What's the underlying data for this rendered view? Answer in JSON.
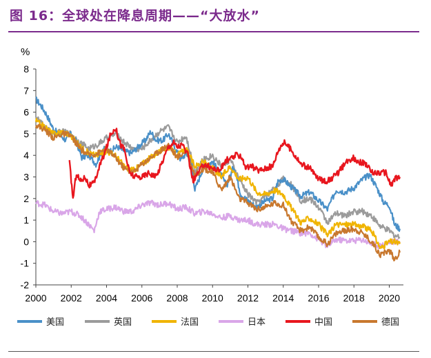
{
  "header": {
    "title": "图 16：全球处在降息周期——“大放水”"
  },
  "chart_data": {
    "type": "line",
    "title": "图 16：全球处在降息周期——“大放水”",
    "ylabel": "%",
    "xlabel": "",
    "ylim": [
      -2,
      8
    ],
    "xlim": [
      2000,
      2020.8
    ],
    "yticks": [
      -2,
      -1,
      0,
      1,
      2,
      3,
      4,
      5,
      6,
      7,
      8
    ],
    "xticks": [
      2000,
      2002,
      2004,
      2006,
      2008,
      2010,
      2012,
      2014,
      2016,
      2018,
      2020
    ],
    "grid": false,
    "legend_position": "bottom",
    "series": [
      {
        "name": "美国",
        "color": "#4a90c8",
        "x": [
          2000.0,
          2000.3,
          2000.6,
          2001.0,
          2001.3,
          2001.7,
          2002.0,
          2002.3,
          2002.6,
          2003.0,
          2003.4,
          2003.8,
          2004.2,
          2004.6,
          2005.0,
          2005.4,
          2005.8,
          2006.2,
          2006.5,
          2006.8,
          2007.2,
          2007.5,
          2007.8,
          2008.2,
          2008.5,
          2008.8,
          2009.0,
          2009.5,
          2010.0,
          2010.4,
          2010.8,
          2011.2,
          2011.6,
          2012.0,
          2012.5,
          2013.0,
          2013.4,
          2013.7,
          2014.0,
          2014.5,
          2015.0,
          2015.5,
          2016.0,
          2016.5,
          2017.0,
          2017.5,
          2018.0,
          2018.5,
          2018.9,
          2019.3,
          2019.7,
          2020.0,
          2020.3,
          2020.6
        ],
        "values": [
          6.6,
          6.3,
          5.9,
          5.2,
          5.0,
          4.7,
          5.0,
          4.6,
          3.9,
          4.0,
          3.6,
          4.3,
          4.2,
          4.4,
          4.2,
          4.1,
          4.4,
          4.7,
          5.1,
          4.7,
          4.7,
          5.0,
          4.5,
          3.8,
          4.1,
          3.7,
          2.4,
          3.5,
          3.7,
          3.2,
          2.6,
          3.5,
          2.2,
          1.9,
          1.6,
          1.9,
          2.0,
          2.8,
          2.9,
          2.5,
          2.1,
          2.3,
          1.9,
          1.5,
          2.4,
          2.3,
          2.5,
          2.9,
          3.1,
          2.5,
          1.8,
          1.7,
          0.8,
          0.6
        ]
      },
      {
        "name": "英国",
        "color": "#9b9b9b",
        "x": [
          2000.0,
          2000.5,
          2001.0,
          2001.5,
          2002.0,
          2002.5,
          2003.0,
          2003.5,
          2004.0,
          2004.5,
          2005.0,
          2005.5,
          2006.0,
          2006.5,
          2007.0,
          2007.5,
          2008.0,
          2008.5,
          2009.0,
          2009.5,
          2010.0,
          2010.5,
          2011.0,
          2011.5,
          2012.0,
          2012.5,
          2013.0,
          2013.5,
          2014.0,
          2014.5,
          2015.0,
          2015.5,
          2016.0,
          2016.5,
          2017.0,
          2017.5,
          2018.0,
          2018.5,
          2019.0,
          2019.5,
          2020.0,
          2020.3,
          2020.6
        ],
        "values": [
          5.8,
          5.3,
          5.0,
          5.1,
          5.0,
          4.6,
          4.3,
          4.5,
          4.8,
          5.0,
          4.6,
          4.3,
          4.3,
          4.7,
          5.1,
          5.3,
          4.6,
          4.9,
          3.3,
          3.8,
          4.0,
          3.5,
          3.8,
          2.9,
          2.2,
          1.8,
          2.1,
          2.5,
          2.9,
          2.6,
          1.9,
          2.0,
          1.6,
          0.9,
          1.3,
          1.2,
          1.4,
          1.4,
          1.2,
          0.7,
          0.5,
          0.3,
          0.2
        ]
      },
      {
        "name": "法国",
        "color": "#f0b400",
        "x": [
          2000.0,
          2000.5,
          2001.0,
          2001.5,
          2002.0,
          2002.5,
          2003.0,
          2003.5,
          2004.0,
          2004.5,
          2005.0,
          2005.5,
          2006.0,
          2006.5,
          2007.0,
          2007.5,
          2008.0,
          2008.5,
          2009.0,
          2009.5,
          2010.0,
          2010.5,
          2011.0,
          2011.5,
          2012.0,
          2012.5,
          2013.0,
          2013.5,
          2014.0,
          2014.5,
          2015.0,
          2015.5,
          2016.0,
          2016.5,
          2017.0,
          2017.5,
          2018.0,
          2018.5,
          2019.0,
          2019.5,
          2020.0,
          2020.3,
          2020.6
        ],
        "values": [
          5.6,
          5.3,
          5.0,
          5.1,
          4.9,
          4.4,
          4.1,
          4.0,
          4.2,
          4.0,
          3.5,
          3.3,
          3.6,
          3.9,
          4.2,
          4.4,
          4.0,
          4.3,
          3.5,
          3.7,
          3.4,
          3.0,
          3.5,
          2.9,
          3.0,
          2.3,
          2.2,
          2.4,
          2.2,
          1.5,
          0.9,
          1.1,
          0.8,
          0.3,
          0.8,
          0.8,
          0.8,
          0.7,
          0.5,
          -0.3,
          0.0,
          0.0,
          -0.1
        ]
      },
      {
        "name": "日本",
        "color": "#d9a6e8",
        "x": [
          2000.0,
          2000.5,
          2001.0,
          2001.5,
          2002.0,
          2002.5,
          2003.0,
          2003.3,
          2003.6,
          2004.0,
          2004.5,
          2005.0,
          2005.5,
          2006.0,
          2006.5,
          2007.0,
          2007.5,
          2008.0,
          2008.5,
          2009.0,
          2009.5,
          2010.0,
          2010.5,
          2011.0,
          2011.5,
          2012.0,
          2012.5,
          2013.0,
          2013.5,
          2014.0,
          2014.5,
          2015.0,
          2015.5,
          2016.0,
          2016.5,
          2017.0,
          2017.5,
          2018.0,
          2018.5,
          2019.0,
          2019.5,
          2020.0,
          2020.3,
          2020.6
        ],
        "values": [
          1.8,
          1.7,
          1.4,
          1.3,
          1.4,
          1.2,
          0.8,
          0.5,
          1.4,
          1.5,
          1.6,
          1.4,
          1.4,
          1.7,
          1.8,
          1.7,
          1.8,
          1.5,
          1.6,
          1.3,
          1.4,
          1.3,
          1.1,
          1.2,
          1.0,
          1.0,
          0.8,
          0.8,
          0.8,
          0.6,
          0.5,
          0.4,
          0.4,
          0.1,
          -0.2,
          0.1,
          0.05,
          0.05,
          0.1,
          -0.1,
          -0.2,
          0.0,
          0.0,
          0.0
        ]
      },
      {
        "name": "中国",
        "color": "#e8161e",
        "x": [
          2001.9,
          2002.1,
          2002.3,
          2002.5,
          2002.8,
          2003.0,
          2003.3,
          2003.6,
          2003.9,
          2004.2,
          2004.5,
          2004.8,
          2005.0,
          2005.3,
          2005.6,
          2006.0,
          2006.4,
          2006.8,
          2007.2,
          2007.5,
          2007.8,
          2008.0,
          2008.3,
          2008.6,
          2008.9,
          2009.2,
          2009.5,
          2010.0,
          2010.4,
          2010.8,
          2011.0,
          2011.3,
          2011.6,
          2011.9,
          2012.2,
          2012.6,
          2013.0,
          2013.4,
          2013.7,
          2013.9,
          2014.1,
          2014.5,
          2015.0,
          2015.5,
          2016.0,
          2016.5,
          2017.0,
          2017.5,
          2017.9,
          2018.3,
          2018.7,
          2019.0,
          2019.4,
          2019.8,
          2020.1,
          2020.3,
          2020.6
        ],
        "values": [
          3.7,
          2.0,
          3.2,
          2.8,
          3.0,
          2.6,
          2.7,
          3.5,
          4.1,
          4.9,
          5.3,
          4.5,
          4.3,
          3.2,
          3.0,
          3.0,
          3.2,
          3.0,
          3.8,
          4.4,
          4.6,
          4.4,
          4.5,
          4.0,
          2.8,
          3.2,
          3.6,
          3.4,
          3.3,
          3.8,
          3.8,
          4.0,
          4.0,
          3.4,
          3.5,
          3.3,
          3.4,
          3.5,
          4.2,
          4.5,
          4.6,
          4.2,
          3.6,
          3.4,
          2.9,
          2.8,
          3.1,
          3.6,
          3.9,
          3.7,
          3.6,
          3.2,
          3.2,
          3.2,
          2.6,
          2.9,
          3.0
        ]
      },
      {
        "name": "德国",
        "color": "#c8782e",
        "x": [
          2000.0,
          2000.5,
          2001.0,
          2001.5,
          2002.0,
          2002.5,
          2003.0,
          2003.5,
          2004.0,
          2004.5,
          2005.0,
          2005.5,
          2006.0,
          2006.5,
          2007.0,
          2007.5,
          2008.0,
          2008.5,
          2009.0,
          2009.5,
          2010.0,
          2010.5,
          2011.0,
          2011.5,
          2012.0,
          2012.5,
          2013.0,
          2013.5,
          2014.0,
          2014.5,
          2015.0,
          2015.5,
          2016.0,
          2016.5,
          2017.0,
          2017.5,
          2018.0,
          2018.5,
          2019.0,
          2019.5,
          2020.0,
          2020.3,
          2020.6
        ],
        "values": [
          5.4,
          5.2,
          4.8,
          5.0,
          4.9,
          4.3,
          4.0,
          4.1,
          4.3,
          3.9,
          3.4,
          3.2,
          3.6,
          3.9,
          4.2,
          4.5,
          3.9,
          4.2,
          3.1,
          3.4,
          3.2,
          2.4,
          3.0,
          2.0,
          1.8,
          1.5,
          1.6,
          1.8,
          1.7,
          0.9,
          0.5,
          0.7,
          0.2,
          -0.1,
          0.4,
          0.5,
          0.6,
          0.4,
          0.0,
          -0.6,
          -0.4,
          -0.8,
          -0.5
        ]
      }
    ]
  }
}
